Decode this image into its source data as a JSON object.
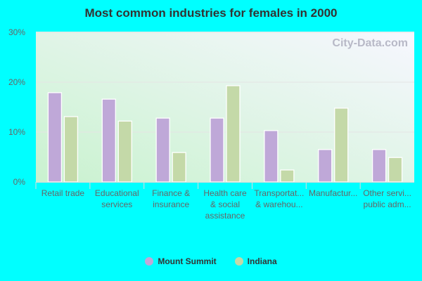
{
  "chart_data": {
    "type": "bar",
    "title": "Most common industries for females in 2000",
    "categories": [
      [
        "Retail trade"
      ],
      [
        "Educational",
        "services"
      ],
      [
        "Finance &",
        "insurance"
      ],
      [
        "Health care",
        "& social",
        "assistance"
      ],
      [
        "Transportat...",
        "& warehou..."
      ],
      [
        "Manufactur..."
      ],
      [
        "Other servi...",
        "public adm..."
      ]
    ],
    "series": [
      {
        "name": "Mount Summit",
        "color": "#bfa8d8",
        "values": [
          17.9,
          16.6,
          12.8,
          12.8,
          10.3,
          6.5,
          6.5
        ]
      },
      {
        "name": "Indiana",
        "color": "#c4d9a8",
        "values": [
          13.1,
          12.2,
          5.9,
          19.3,
          2.4,
          14.8,
          4.9
        ]
      }
    ],
    "yticks": [
      "0%",
      "10%",
      "20%",
      "30%"
    ],
    "ylim": [
      0,
      30
    ],
    "grid": true,
    "legend": "bottom",
    "watermark": "City-Data.com"
  }
}
